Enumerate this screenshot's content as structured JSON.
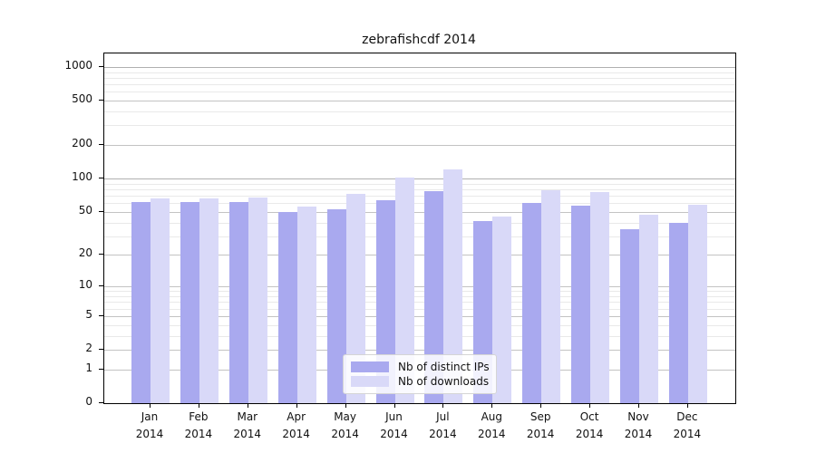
{
  "chart_data": {
    "type": "bar",
    "title": "zebrafishcdf 2014",
    "year": "2014",
    "categories": [
      "Jan",
      "Feb",
      "Mar",
      "Apr",
      "May",
      "Jun",
      "Jul",
      "Aug",
      "Sep",
      "Oct",
      "Nov",
      "Dec"
    ],
    "series": [
      {
        "name": "Nb of distinct IPs",
        "color": "#a9a9ef",
        "values": [
          61,
          61,
          61,
          50,
          53,
          64,
          77,
          41,
          60,
          57,
          35,
          40
        ]
      },
      {
        "name": "Nb of downloads",
        "color": "#d9d9f8",
        "values": [
          66,
          66,
          67,
          56,
          73,
          103,
          120,
          45,
          79,
          76,
          47,
          58
        ]
      }
    ],
    "yscale": "log1p",
    "yticks": [
      0,
      1,
      2,
      5,
      10,
      20,
      50,
      100,
      200,
      500,
      1000
    ],
    "minor_gridlines": [
      3,
      4,
      6,
      7,
      8,
      9,
      30,
      40,
      60,
      70,
      80,
      90,
      300,
      400,
      600,
      700,
      800,
      900
    ],
    "decade_gridlines": [
      100,
      1000
    ],
    "ylim": [
      0,
      1319
    ],
    "grid": "on",
    "legend_position": "lower-center",
    "background": "#ffffff",
    "axis_color": "#000000"
  }
}
